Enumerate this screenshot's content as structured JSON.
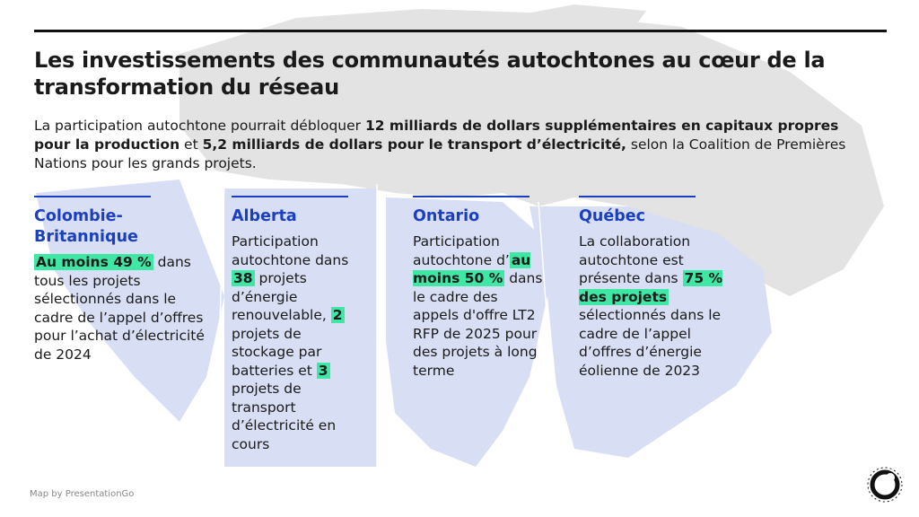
{
  "title": "Les investissements des communautés autochtones au cœur de la transformation du réseau",
  "intro": [
    {
      "text": "La participation autochtone pourrait débloquer "
    },
    {
      "text": "12 milliards de dollars supplémentaires en capitaux propres pour la production",
      "bold": true
    },
    {
      "text": " et "
    },
    {
      "text": "5,2 milliards de dollars pour le transport d’électricité,",
      "bold": true
    },
    {
      "text": " selon la Coalition de Premières Nations pour les grands projets."
    }
  ],
  "columns": [
    {
      "heading": "Colombie-Britannique",
      "body": [
        {
          "text": "Au moins 49 %",
          "bold": true,
          "highlight": true
        },
        {
          "text": " dans tous les projets sélectionnés dans le cadre de l’appel d’offres pour l’achat d’électricité de 2024"
        }
      ]
    },
    {
      "heading": "Alberta",
      "body": [
        {
          "text": "Participation autochtone dans "
        },
        {
          "text": "38",
          "bold": true,
          "highlight": true
        },
        {
          "text": " projets d’énergie renouvelable, "
        },
        {
          "text": "2",
          "bold": true,
          "highlight": true
        },
        {
          "text": " projets de stockage par batteries et "
        },
        {
          "text": "3",
          "bold": true,
          "highlight": true
        },
        {
          "text": " projets de transport d’électricité en cours"
        }
      ]
    },
    {
      "heading": "Ontario",
      "body": [
        {
          "text": "Participation autochtone d’"
        },
        {
          "text": "au moins 50 %",
          "bold": true,
          "highlight": true
        },
        {
          "text": " dans le cadre des appels d'offre LT2 RFP de 2025 pour des projets à long terme"
        }
      ]
    },
    {
      "heading": "Québec",
      "body": [
        {
          "text": "La collaboration autochtone est présente dans "
        },
        {
          "text": "75 % des projets",
          "bold": true,
          "highlight": true
        },
        {
          "text": " sélectionnés dans le cadre de l’appel d’offres d’énergie éolienne de 2023"
        }
      ]
    }
  ],
  "footer": "Map by PresentationGo"
}
